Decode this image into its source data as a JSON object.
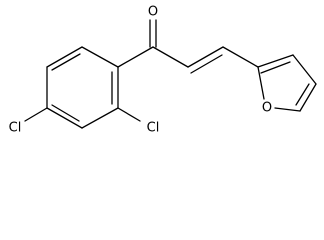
{
  "atom_labels": [
    "O",
    "Cl",
    "Cl",
    "O"
  ]
}
